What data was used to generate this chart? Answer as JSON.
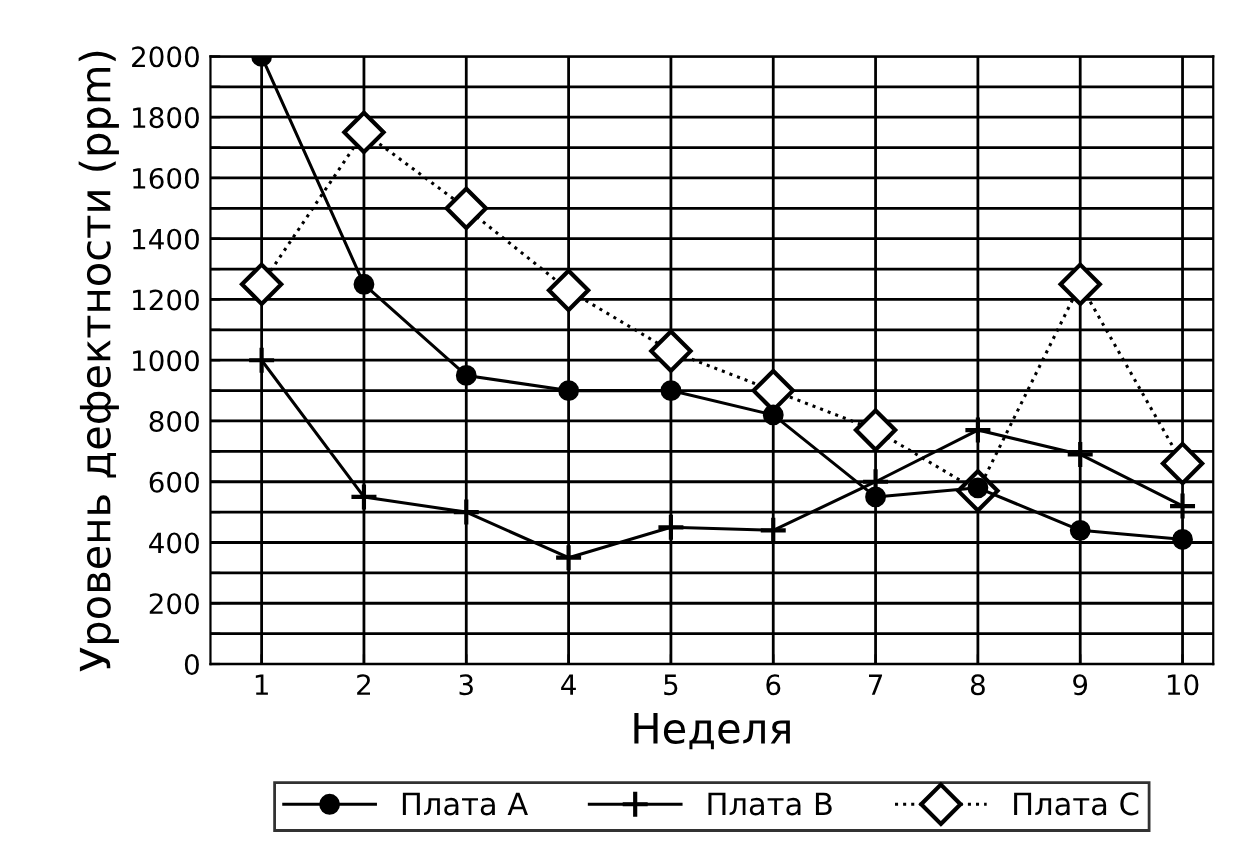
{
  "chart_data": {
    "type": "line",
    "xlabel": "Неделя",
    "ylabel": "Уровень дефектности (ppm)",
    "x": [
      1,
      2,
      3,
      4,
      5,
      6,
      7,
      8,
      9,
      10
    ],
    "xlim": [
      0.5,
      10.3
    ],
    "xticks": [
      1,
      2,
      3,
      4,
      5,
      6,
      7,
      8,
      9,
      10
    ],
    "ylim": [
      0,
      2000
    ],
    "yticks": [
      0,
      {
        "value": 100,
        "label": null
      },
      200,
      {
        "value": 300,
        "label": null
      },
      400,
      {
        "value": 500,
        "label": null
      },
      600,
      {
        "value": 700,
        "label": null
      },
      800,
      {
        "value": 900,
        "label": null
      },
      1000,
      {
        "value": 1100,
        "label": null
      },
      1200,
      {
        "value": 1300,
        "label": null
      },
      1400,
      {
        "value": 1500,
        "label": null
      },
      1600,
      {
        "value": 1700,
        "label": null
      },
      1800,
      {
        "value": 1900,
        "label": null
      },
      2000
    ],
    "grid": true,
    "legend": "bottom",
    "series": [
      {
        "name": "Плата A",
        "color": "#000000",
        "marker": "circle",
        "line_style": "solid",
        "values": [
          2000,
          1250,
          950,
          900,
          900,
          820,
          550,
          580,
          440,
          410
        ]
      },
      {
        "name": "Плата B",
        "color": "#000000",
        "marker": "cross",
        "line_style": "solid",
        "values": [
          1000,
          550,
          500,
          350,
          450,
          440,
          600,
          770,
          690,
          520
        ]
      },
      {
        "name": "Плата C",
        "color": "#000000",
        "marker": "diamond",
        "line_style": "dotted",
        "values": [
          1250,
          1750,
          1500,
          1230,
          1030,
          900,
          770,
          570,
          1250,
          660
        ]
      }
    ]
  }
}
